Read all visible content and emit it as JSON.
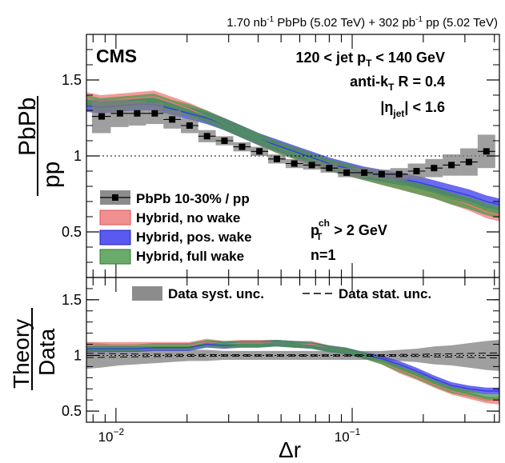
{
  "header": {
    "lumi": "1.70 nb",
    "lumi_sup": "-1",
    "lumi_mid": " PbPb (5.02 TeV) + 302 pb",
    "lumi_sup2": "-1",
    "lumi_end": " pp (5.02 TeV)"
  },
  "labels": {
    "cms": "CMS",
    "sel_pre": "120 < jet p",
    "sel_sub": "T",
    "sel_post": " < 140 GeV",
    "algo_pre": "anti-k",
    "algo_sub": "T",
    "algo_post": " R = 0.4",
    "eta_pre": "|η",
    "eta_sub": "jet",
    "eta_post": "| < 1.6",
    "pt_pre": "p",
    "pt_sub": "T",
    "pt_sup": "ch",
    "pt_post": " > 2 GeV",
    "n": "n=1"
  },
  "chart_data": [
    {
      "type": "line",
      "panel": "top",
      "xscale": "log",
      "xlim": [
        0.0075,
        0.42
      ],
      "ylim": [
        0.2,
        1.8
      ],
      "yticks": [
        0.5,
        1,
        1.5
      ],
      "ytick_labels": [
        "0.5",
        "1",
        "1.5"
      ],
      "ylabel_num": "PbPb",
      "ylabel_den": "pp",
      "reference_line": 1,
      "x": [
        0.0075,
        0.0086,
        0.0103,
        0.0122,
        0.0145,
        0.0172,
        0.0204,
        0.0242,
        0.0287,
        0.034,
        0.0403,
        0.0478,
        0.0567,
        0.0672,
        0.0797,
        0.0945,
        0.112,
        0.133,
        0.158,
        0.187,
        0.222,
        0.263,
        0.312,
        0.37,
        0.42
      ],
      "series": [
        {
          "name": "PbPb 10-30% / pp",
          "style": "points",
          "x": [
            0.0087,
            0.0104,
            0.0123,
            0.0146,
            0.0173,
            0.0205,
            0.0243,
            0.0288,
            0.0342,
            0.0405,
            0.048,
            0.0569,
            0.0675,
            0.08,
            0.0948,
            0.1125,
            0.1333,
            0.158,
            0.1873,
            0.2221,
            0.2633,
            0.3121,
            0.37
          ],
          "values": [
            1.26,
            1.28,
            1.28,
            1.28,
            1.24,
            1.2,
            1.13,
            1.1,
            1.06,
            1.03,
            0.98,
            0.95,
            0.94,
            0.92,
            0.89,
            0.89,
            0.88,
            0.88,
            0.9,
            0.92,
            0.94,
            0.96,
            1.03
          ],
          "syst_unc": [
            0.11,
            0.09,
            0.08,
            0.07,
            0.06,
            0.05,
            0.04,
            0.03,
            0.03,
            0.03,
            0.03,
            0.03,
            0.03,
            0.03,
            0.03,
            0.03,
            0.03,
            0.04,
            0.05,
            0.06,
            0.07,
            0.09,
            0.11
          ]
        },
        {
          "name": "Hybrid, no wake",
          "color": "#f07878",
          "values": [
            1.38,
            1.36,
            1.37,
            1.38,
            1.39,
            1.35,
            1.31,
            1.26,
            1.21,
            1.16,
            1.11,
            1.06,
            1.02,
            0.98,
            0.94,
            0.91,
            0.88,
            0.85,
            0.82,
            0.79,
            0.76,
            0.72,
            0.68,
            0.63,
            0.61
          ],
          "unc": 0.04
        },
        {
          "name": "Hybrid, pos. wake",
          "color": "#3a3ae8",
          "values": [
            1.33,
            1.32,
            1.33,
            1.34,
            1.34,
            1.31,
            1.28,
            1.25,
            1.21,
            1.16,
            1.11,
            1.07,
            1.03,
            0.99,
            0.95,
            0.92,
            0.89,
            0.87,
            0.85,
            0.83,
            0.8,
            0.77,
            0.74,
            0.7,
            0.68
          ],
          "unc": 0.04
        },
        {
          "name": "Hybrid, full wake",
          "color": "#4a9a4a",
          "values": [
            1.36,
            1.34,
            1.35,
            1.36,
            1.37,
            1.33,
            1.3,
            1.26,
            1.21,
            1.16,
            1.11,
            1.06,
            1.02,
            0.98,
            0.94,
            0.91,
            0.88,
            0.85,
            0.82,
            0.79,
            0.76,
            0.72,
            0.69,
            0.65,
            0.63
          ],
          "unc": 0.04
        }
      ],
      "legend": [
        "PbPb 10-30% / pp",
        "Hybrid, no wake",
        "Hybrid, pos. wake",
        "Hybrid, full wake"
      ],
      "legend_position": "bottom-left"
    },
    {
      "type": "line",
      "panel": "bottom",
      "xscale": "log",
      "xlim": [
        0.0075,
        0.42
      ],
      "ylim": [
        0.4,
        1.7
      ],
      "yticks": [
        0.5,
        1,
        1.5
      ],
      "ytick_labels": [
        "0.5",
        "1",
        "1.5"
      ],
      "ylabel_num": "Theory",
      "ylabel_den": "Data",
      "xlabel": "Δr",
      "xticks": [
        0.01,
        0.1
      ],
      "xtick_base": "10",
      "xtick_exps": [
        "−2",
        "−1"
      ],
      "reference_line": 1,
      "x": [
        0.0075,
        0.0086,
        0.0103,
        0.0122,
        0.0145,
        0.0172,
        0.0204,
        0.0242,
        0.0287,
        0.034,
        0.0403,
        0.0478,
        0.0567,
        0.0672,
        0.0797,
        0.0945,
        0.112,
        0.133,
        0.158,
        0.187,
        0.222,
        0.263,
        0.312,
        0.37,
        0.42
      ],
      "data_syst_unc": [
        0.12,
        0.11,
        0.09,
        0.08,
        0.07,
        0.06,
        0.05,
        0.05,
        0.04,
        0.04,
        0.04,
        0.04,
        0.04,
        0.04,
        0.04,
        0.04,
        0.04,
        0.04,
        0.05,
        0.06,
        0.08,
        0.09,
        0.11,
        0.13,
        0.14
      ],
      "series": [
        {
          "name": "Hybrid, no wake",
          "color": "#f07878",
          "values": [
            1.09,
            1.09,
            1.09,
            1.09,
            1.09,
            1.09,
            1.09,
            1.12,
            1.1,
            1.11,
            1.11,
            1.11,
            1.1,
            1.1,
            1.06,
            1.04,
            1.0,
            0.95,
            0.87,
            0.81,
            0.74,
            0.68,
            0.64,
            0.6,
            0.59
          ],
          "unc": 0.03
        },
        {
          "name": "Hybrid, pos. wake",
          "color": "#3a3ae8",
          "values": [
            1.06,
            1.06,
            1.06,
            1.06,
            1.07,
            1.07,
            1.07,
            1.1,
            1.09,
            1.1,
            1.1,
            1.11,
            1.1,
            1.09,
            1.06,
            1.04,
            1.0,
            0.97,
            0.92,
            0.86,
            0.79,
            0.73,
            0.7,
            0.68,
            0.68
          ],
          "unc": 0.03
        },
        {
          "name": "Hybrid, full wake",
          "color": "#4a9a4a",
          "values": [
            1.07,
            1.07,
            1.07,
            1.07,
            1.08,
            1.08,
            1.08,
            1.11,
            1.1,
            1.1,
            1.1,
            1.11,
            1.1,
            1.09,
            1.06,
            1.04,
            1.0,
            0.95,
            0.88,
            0.82,
            0.75,
            0.69,
            0.66,
            0.62,
            0.62
          ],
          "unc": 0.03
        }
      ],
      "legend": [
        "Data syst. unc.",
        "Data stat. unc."
      ],
      "legend_position": "top"
    }
  ]
}
